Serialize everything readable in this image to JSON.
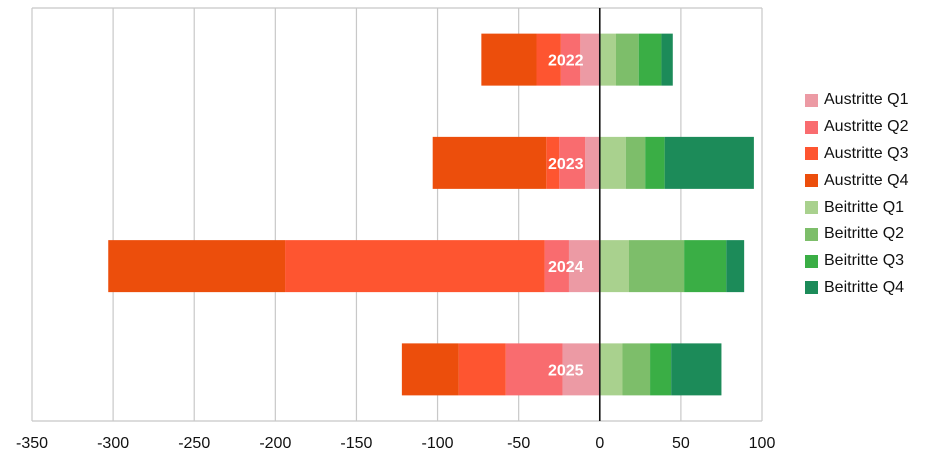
{
  "chart_data": {
    "type": "bar",
    "orientation": "horizontal",
    "stacked": true,
    "categories": [
      "2022",
      "2023",
      "2024",
      "2025"
    ],
    "series": [
      {
        "name": "Austritte Q1",
        "color": "#ec9aa4",
        "values": [
          -12,
          -9,
          -19,
          -23
        ]
      },
      {
        "name": "Austritte Q2",
        "color": "#f96c6f",
        "values": [
          -12,
          -16,
          -15,
          -35
        ]
      },
      {
        "name": "Austritte Q3",
        "color": "#fe5530",
        "values": [
          -15,
          -8,
          -160,
          -29
        ]
      },
      {
        "name": "Austritte Q4",
        "color": "#ec4e0c",
        "values": [
          -34,
          -70,
          -109,
          -35
        ]
      },
      {
        "name": "Beitritte Q1",
        "color": "#a9d18e",
        "values": [
          10,
          16,
          18,
          14
        ]
      },
      {
        "name": "Beitritte Q2",
        "color": "#7dbe6a",
        "values": [
          14,
          12,
          34,
          17
        ]
      },
      {
        "name": "Beitritte Q3",
        "color": "#3aae45",
        "values": [
          14,
          12,
          26,
          13
        ]
      },
      {
        "name": "Beitritte Q4",
        "color": "#1c8b59",
        "values": [
          7,
          55,
          11,
          31
        ]
      }
    ],
    "xlim": [
      -350,
      100
    ],
    "xticks": [
      "-350",
      "-300",
      "-250",
      "-200",
      "-150",
      "-100",
      "-50",
      "0",
      "50",
      "100"
    ],
    "grid": true,
    "legend_position": "right"
  }
}
